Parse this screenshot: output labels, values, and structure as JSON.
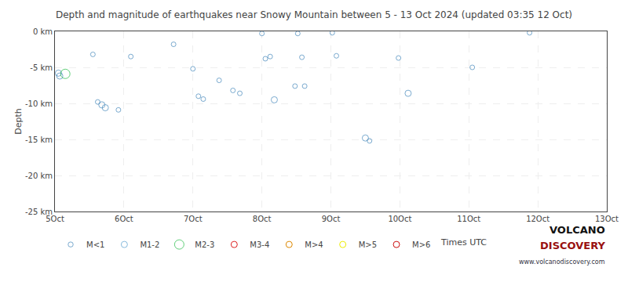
{
  "chart_data": {
    "type": "scatter",
    "title": "Depth and magnitude of earthquakes near Snowy Mountain between 5 - 13 Oct 2024 (updated 03:35 12 Oct)",
    "ylabel": "Depth",
    "marker": "circle-open",
    "grid": true,
    "legend": "bottom left",
    "xlim": [
      5,
      13
    ],
    "xticks": [
      {
        "value": 5,
        "label": "5Oct"
      },
      {
        "value": 6,
        "label": "6Oct"
      },
      {
        "value": 7,
        "label": "7Oct"
      },
      {
        "value": 8,
        "label": "8Oct"
      },
      {
        "value": 9,
        "label": "9Oct"
      },
      {
        "value": 10,
        "label": "10Oct"
      },
      {
        "value": 11,
        "label": "11Oct"
      },
      {
        "value": 12,
        "label": "12Oct"
      },
      {
        "value": 13,
        "label": "13Oct"
      }
    ],
    "ylim": [
      -25,
      0
    ],
    "yticks": [
      {
        "value": 0,
        "label": "0 km"
      },
      {
        "value": -5,
        "label": "-5 km"
      },
      {
        "value": -10,
        "label": "-10 km"
      },
      {
        "value": -15,
        "label": "-15 km"
      },
      {
        "value": -20,
        "label": "-20 km"
      },
      {
        "value": -25,
        "label": "-25 km"
      }
    ],
    "series": [
      {
        "name": "M<1",
        "color": "#4488bb",
        "x": [
          5.05,
          5.07,
          5.55,
          5.62,
          5.68,
          5.73,
          5.92,
          6.1,
          6.72,
          7.0,
          7.08,
          7.15,
          7.38,
          7.58,
          7.68,
          8.0,
          8.05,
          8.12,
          8.18,
          8.48,
          8.52,
          8.58,
          8.62,
          9.02,
          9.08,
          9.5,
          9.56,
          9.98,
          10.12,
          11.05,
          11.88
        ],
        "values": [
          -5.8,
          -6.2,
          -3.2,
          -9.8,
          -10.2,
          -10.6,
          -10.9,
          -3.5,
          -1.8,
          -5.2,
          -9.0,
          -9.4,
          -6.8,
          -8.2,
          -8.6,
          -0.3,
          -3.8,
          -3.5,
          -9.5,
          -7.6,
          -0.3,
          -3.6,
          -7.6,
          -0.2,
          -3.4,
          -14.8,
          -15.2,
          -3.7,
          -8.6,
          -5.0,
          -0.2
        ],
        "magnitudes": [
          1.5,
          1.5,
          1.2,
          1.2,
          1.5,
          1.5,
          1.2,
          1.2,
          1.2,
          1.2,
          1.2,
          1.2,
          1.2,
          1.2,
          1.2,
          1.2,
          1.2,
          1.2,
          1.5,
          1.2,
          1.2,
          1.2,
          1.2,
          1.2,
          1.2,
          1.5,
          1.2,
          1.2,
          1.5,
          1.2,
          1.2
        ]
      },
      {
        "name": "M1-2",
        "color": "#88bbdd",
        "x": [],
        "values": [],
        "magnitudes": []
      },
      {
        "name": "M2-3",
        "color": "#22bb44",
        "x": [
          5.15
        ],
        "values": [
          -5.9
        ],
        "magnitudes": [
          2.5
        ]
      },
      {
        "name": "M3-4",
        "color": "#dd2222",
        "x": [],
        "values": [],
        "magnitudes": []
      },
      {
        "name": "M>4",
        "color": "#dd8800",
        "x": [],
        "values": [],
        "magnitudes": []
      },
      {
        "name": "M>5",
        "color": "#eeee00",
        "x": [],
        "values": [],
        "magnitudes": []
      },
      {
        "name": "M>6",
        "color": "#cc1111",
        "x": [],
        "values": [],
        "magnitudes": []
      }
    ],
    "annotations": [
      {
        "text": "Times UTC"
      },
      {
        "text": "VOLCANO",
        "color": "#111111"
      },
      {
        "text": "DISCOVERY",
        "color": "#991111"
      },
      {
        "text": "www.volcanodiscovery.com",
        "color": "#333344"
      }
    ]
  }
}
